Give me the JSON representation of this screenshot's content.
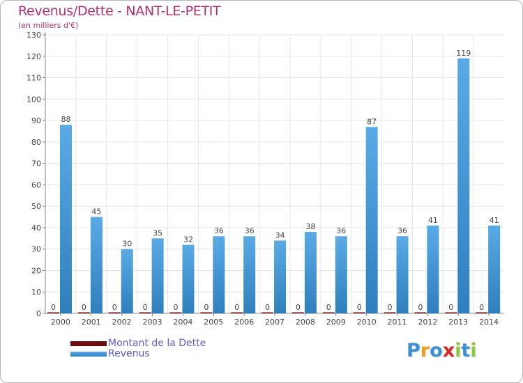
{
  "colors": {
    "revenus_top": "#5aaae6",
    "revenus_bottom": "#2f7fbd",
    "dette": "#6b0d0d",
    "grid": "#e6e6e6",
    "title": "#b03070",
    "legend_text": "#5b5bd6"
  },
  "logo": {
    "letters": [
      "P",
      "r",
      "o",
      "x",
      "i",
      "t",
      "i"
    ],
    "colors": [
      "#3b8fd6",
      "#f0a020",
      "#3b8fd6",
      "#d12b2b",
      "#8cc83c",
      "#3b8fd6",
      "#8cc83c"
    ]
  },
  "chart_data": {
    "type": "bar",
    "title": "Revenus/Dette - NANT-LE-PETIT",
    "subtitle": "(en milliers d'€)",
    "xlabel": "",
    "ylabel": "",
    "ylim": [
      0,
      130
    ],
    "yticks": [
      0,
      10,
      20,
      30,
      40,
      50,
      60,
      70,
      80,
      90,
      100,
      110,
      120,
      130
    ],
    "categories": [
      "2000",
      "2001",
      "2002",
      "2003",
      "2004",
      "2005",
      "2006",
      "2007",
      "2008",
      "2009",
      "2010",
      "2011",
      "2012",
      "2013",
      "2014"
    ],
    "series": [
      {
        "name": "Montant de la Dette",
        "values": [
          0,
          0,
          0,
          0,
          0,
          0,
          0,
          0,
          0,
          0,
          0,
          0,
          0,
          0,
          0
        ]
      },
      {
        "name": "Revenus",
        "values": [
          88,
          45,
          30,
          35,
          32,
          36,
          36,
          34,
          38,
          36,
          87,
          36,
          41,
          119,
          41
        ]
      }
    ],
    "legend": [
      "Montant de la Dette",
      "Revenus"
    ],
    "grid": true
  }
}
